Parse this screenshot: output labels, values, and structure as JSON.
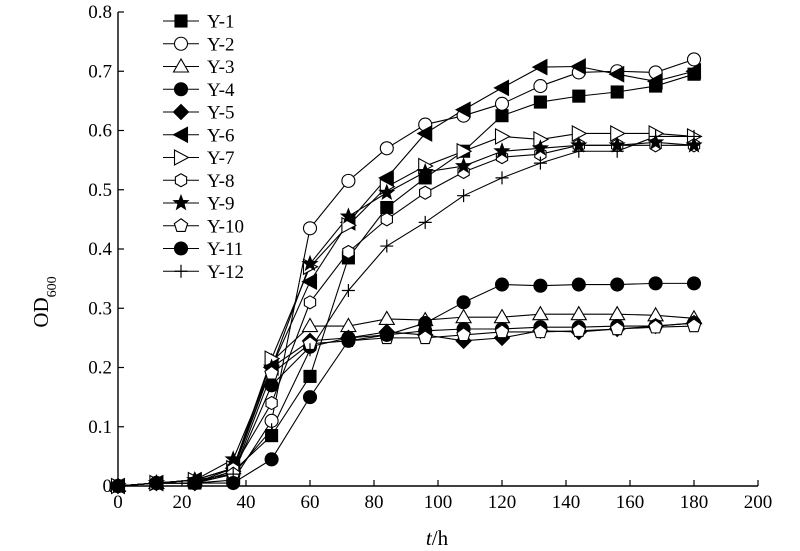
{
  "chart_data": {
    "type": "line",
    "title": "",
    "xlabel": {
      "var": "t",
      "unit": "/h"
    },
    "ylabel": {
      "base": "OD",
      "sub": "600"
    },
    "xlim": [
      0,
      200
    ],
    "ylim": [
      0,
      0.8
    ],
    "x_ticks": [
      0,
      20,
      40,
      60,
      80,
      100,
      120,
      140,
      160,
      180,
      200
    ],
    "y_ticks": [
      0,
      0.1,
      0.2,
      0.3,
      0.4,
      0.5,
      0.6,
      0.7,
      0.8
    ],
    "x_tick_labels": [
      "0",
      "20",
      "40",
      "60",
      "80",
      "100",
      "120",
      "140",
      "160",
      "180",
      "200"
    ],
    "y_tick_labels": [
      "0",
      "0.1",
      "0.2",
      "0.3",
      "0.4",
      "0.5",
      "0.6",
      "0.7",
      "0.8"
    ],
    "grid": false,
    "legend_position": "top-left",
    "x": [
      0,
      12,
      24,
      36,
      48,
      60,
      72,
      84,
      96,
      108,
      120,
      132,
      144,
      156,
      168,
      180
    ],
    "series": [
      {
        "name": "Y-1",
        "marker": "square-filled",
        "values": [
          0,
          0.005,
          0.005,
          0.025,
          0.085,
          0.185,
          0.385,
          0.47,
          0.52,
          0.565,
          0.625,
          0.648,
          0.658,
          0.665,
          0.675,
          0.695
        ]
      },
      {
        "name": "Y-2",
        "marker": "circle-open",
        "values": [
          0,
          0.005,
          0.005,
          0.01,
          0.11,
          0.435,
          0.515,
          0.57,
          0.61,
          0.625,
          0.645,
          0.675,
          0.698,
          0.7,
          0.698,
          0.72
        ]
      },
      {
        "name": "Y-3",
        "marker": "triangle-open",
        "values": [
          0,
          0.005,
          0.01,
          0.03,
          0.21,
          0.27,
          0.27,
          0.282,
          0.28,
          0.285,
          0.285,
          0.29,
          0.29,
          0.29,
          0.288,
          0.283
        ]
      },
      {
        "name": "Y-4",
        "marker": "circle-filled",
        "values": [
          0,
          0.005,
          0.005,
          0.02,
          0.17,
          0.235,
          0.25,
          0.255,
          0.262,
          0.265,
          0.265,
          0.268,
          0.268,
          0.27,
          0.27,
          0.275
        ]
      },
      {
        "name": "Y-5",
        "marker": "diamond-filled",
        "values": [
          0,
          0.005,
          0.005,
          0.025,
          0.2,
          0.245,
          0.25,
          0.26,
          0.255,
          0.245,
          0.25,
          0.262,
          0.26,
          0.265,
          0.27,
          0.275
        ]
      },
      {
        "name": "Y-6",
        "marker": "triangle-left-filled",
        "values": [
          0,
          0.005,
          0.01,
          0.03,
          0.2,
          0.345,
          0.445,
          0.52,
          0.595,
          0.635,
          0.672,
          0.707,
          0.708,
          0.695,
          0.683,
          0.7
        ]
      },
      {
        "name": "Y-7",
        "marker": "triangle-right-open",
        "values": [
          0,
          0.005,
          0.01,
          0.03,
          0.215,
          0.37,
          0.44,
          0.505,
          0.54,
          0.565,
          0.59,
          0.585,
          0.595,
          0.595,
          0.595,
          0.59
        ]
      },
      {
        "name": "Y-8",
        "marker": "hexagon-open",
        "values": [
          0,
          0.005,
          0.005,
          0.03,
          0.14,
          0.31,
          0.395,
          0.45,
          0.495,
          0.53,
          0.555,
          0.56,
          0.575,
          0.575,
          0.575,
          0.575
        ]
      },
      {
        "name": "Y-9",
        "marker": "star-filled",
        "values": [
          0,
          0.005,
          0.01,
          0.045,
          0.2,
          0.375,
          0.455,
          0.495,
          0.53,
          0.54,
          0.565,
          0.57,
          0.575,
          0.575,
          0.58,
          0.575
        ]
      },
      {
        "name": "Y-10",
        "marker": "pentagon-open",
        "values": [
          0,
          0.005,
          0.005,
          0.02,
          0.19,
          0.24,
          0.245,
          0.25,
          0.25,
          0.255,
          0.26,
          0.26,
          0.262,
          0.265,
          0.268,
          0.27
        ]
      },
      {
        "name": "Y-11",
        "marker": "circle-filled",
        "values": [
          0,
          0.005,
          0.005,
          0.005,
          0.045,
          0.15,
          0.245,
          0.255,
          0.275,
          0.31,
          0.34,
          0.338,
          0.34,
          0.34,
          0.342,
          0.342
        ]
      },
      {
        "name": "Y-12",
        "marker": "plus",
        "values": [
          0,
          0.005,
          0.01,
          0.02,
          0.095,
          0.23,
          0.33,
          0.405,
          0.445,
          0.49,
          0.52,
          0.545,
          0.565,
          0.565,
          0.59,
          0.59
        ]
      }
    ]
  }
}
